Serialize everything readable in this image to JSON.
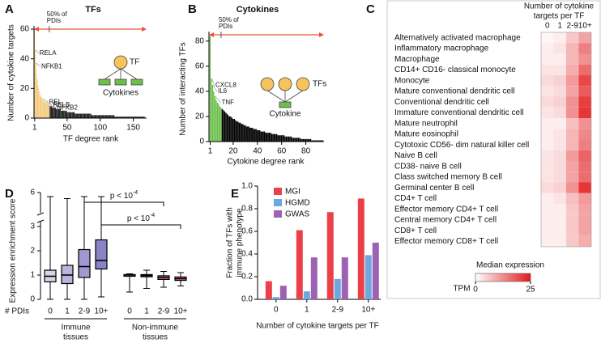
{
  "chart_data": [
    {
      "type": "rank_bar",
      "panel_label": "A",
      "title": "TFs",
      "xlabel": "TF degree rank",
      "ylabel": "Number of cytokine targets",
      "xlim": [
        0,
        170
      ],
      "xticks": [
        1,
        50,
        100,
        150
      ],
      "ylim": [
        0,
        60
      ],
      "yticks": [
        0,
        20,
        40,
        60
      ],
      "color": "#000000",
      "highlight_color": "#f2c46d",
      "arrow_color": "#e8533a",
      "annotation": {
        "lines": [
          "50% of",
          "PDIs"
        ],
        "x": 23
      },
      "point_labels": [
        {
          "text": "RELA",
          "rank": 2
        },
        {
          "text": "NFKB1",
          "rank": 3
        },
        {
          "text": "REL",
          "rank": 13
        },
        {
          "text": "RELB",
          "rank": 17
        },
        {
          "text": "NFKB2",
          "rank": 21
        }
      ],
      "inset_labels": [
        "TF",
        "Cytokines"
      ],
      "values": [
        60,
        46,
        37,
        30,
        26,
        22,
        20,
        18,
        16,
        15,
        14,
        14,
        13,
        12,
        12,
        11,
        11,
        10,
        10,
        10,
        9,
        9,
        9,
        8,
        8,
        8,
        8,
        7,
        7,
        7,
        7,
        7,
        7,
        6,
        6,
        6,
        6,
        6,
        6,
        6,
        5,
        5,
        5,
        5,
        5,
        5,
        5,
        5,
        5,
        4,
        4,
        4,
        4,
        4,
        4,
        4,
        4,
        4,
        4,
        4,
        4,
        3,
        3,
        3,
        3,
        3,
        3,
        3,
        3,
        3,
        3,
        3,
        3,
        3,
        3,
        3,
        3,
        3,
        3,
        3,
        3,
        3,
        3,
        3,
        3,
        3,
        2,
        2,
        2,
        2,
        2,
        2,
        2,
        2,
        2,
        2,
        2,
        2,
        2,
        2,
        2,
        2,
        2,
        2,
        2,
        2,
        2,
        2,
        2,
        2,
        2,
        2,
        2,
        2,
        2,
        2,
        2,
        2,
        2,
        2,
        2,
        1,
        1,
        1,
        1,
        1,
        1,
        1,
        1,
        1,
        1,
        1,
        1,
        1,
        1,
        1,
        1,
        1,
        1,
        1,
        1,
        1,
        1,
        1,
        1,
        1,
        1,
        1,
        1,
        1,
        1,
        1,
        1,
        1,
        1,
        1,
        1,
        1,
        1,
        1,
        1,
        1,
        1,
        1,
        1,
        1,
        1
      ]
    },
    {
      "type": "rank_bar",
      "panel_label": "B",
      "title": "Cytokines",
      "xlabel": "Cytokine degree rank",
      "ylabel": "Number of interacting TFs",
      "xlim": [
        0,
        95
      ],
      "xticks": [
        1,
        20,
        40,
        60,
        80
      ],
      "ylim": [
        0,
        85
      ],
      "yticks": [
        0,
        20,
        40,
        60,
        80
      ],
      "color": "#000000",
      "highlight_color": "#6cbf4a",
      "arrow_color": "#e8533a",
      "annotation": {
        "lines": [
          "50% of",
          "PDIs"
        ],
        "x": 10
      },
      "point_labels": [
        {
          "text": "CXCL8",
          "rank": 2
        },
        {
          "text": "IL6",
          "rank": 3
        },
        {
          "text": "TNF",
          "rank": 5
        }
      ],
      "inset_labels": [
        "TFs",
        "Cytokine"
      ],
      "values": [
        84,
        50,
        45,
        40,
        36,
        33,
        31,
        30,
        28,
        27,
        26,
        25,
        24,
        23,
        22,
        21,
        20,
        20,
        19,
        18,
        18,
        17,
        16,
        16,
        15,
        15,
        14,
        14,
        13,
        13,
        12,
        12,
        12,
        11,
        11,
        11,
        10,
        10,
        10,
        9,
        9,
        9,
        8,
        8,
        8,
        8,
        7,
        7,
        7,
        7,
        7,
        6,
        6,
        6,
        6,
        6,
        5,
        5,
        5,
        5,
        5,
        5,
        4,
        4,
        4,
        4,
        4,
        4,
        3,
        3,
        3,
        3,
        3,
        3,
        3,
        2,
        2,
        2,
        2,
        2,
        2,
        2,
        2,
        2,
        1,
        1,
        1,
        1,
        1,
        1,
        1,
        1,
        1,
        1
      ]
    },
    {
      "type": "heatmap",
      "panel_label": "C",
      "title_lines": [
        "Number of cytokine",
        "targets per TF"
      ],
      "columns": [
        "0",
        "1",
        "2-9",
        "10+"
      ],
      "rows": [
        "Alternatively activated macrophage",
        "Inflammatory macrophage",
        "Macrophage",
        "CD14+ CD16- classical monocyte",
        "Monocyte",
        "Mature conventional dendritic cell",
        "Conventional dendritic cell",
        "Immature conventional dendritic cell",
        "Mature neutrophil",
        "Mature eosinophil",
        "Cytotoxic CD56- dim natural killer cell",
        "Naive B cell",
        "CD38- naive B cell",
        "Class switched memory B cell",
        "Germinal center B cell",
        "CD4+ T cell",
        "Effector memory CD4+ T cell",
        "Central memory CD4+ T cell",
        "CD8+ T cell",
        "Effector memory CD8+ T cell"
      ],
      "values": [
        [
          1,
          2,
          6,
          10
        ],
        [
          2,
          3,
          8,
          14
        ],
        [
          2,
          2,
          8,
          12
        ],
        [
          3,
          3,
          9,
          16
        ],
        [
          4,
          5,
          11,
          20
        ],
        [
          3,
          4,
          10,
          18
        ],
        [
          4,
          5,
          12,
          21
        ],
        [
          3,
          4,
          12,
          22
        ],
        [
          2,
          2,
          7,
          12
        ],
        [
          2,
          3,
          8,
          13
        ],
        [
          2,
          3,
          8,
          14
        ],
        [
          3,
          4,
          11,
          17
        ],
        [
          3,
          4,
          10,
          16
        ],
        [
          3,
          4,
          10,
          16
        ],
        [
          4,
          5,
          12,
          22
        ],
        [
          2,
          3,
          7,
          11
        ],
        [
          2,
          2,
          6,
          10
        ],
        [
          2,
          2,
          6,
          10
        ],
        [
          2,
          2,
          6,
          10
        ],
        [
          2,
          2,
          6,
          9
        ]
      ],
      "color": "#e31a1c",
      "clim": [
        0,
        25
      ],
      "colorbar_ticks": [
        0,
        25
      ],
      "colorbar_label": "Median expression",
      "colorbar_unit": "TPM"
    },
    {
      "type": "box",
      "panel_label": "D",
      "ylabel": "Expression enrichment score",
      "xlabel": "# PDIs",
      "ylim": [
        0,
        6
      ],
      "yticks": [
        0,
        1,
        2,
        3,
        6
      ],
      "ybreak": [
        3.2,
        5
      ],
      "categories": [
        "0",
        "1",
        "2-9",
        "10+",
        "0",
        "1",
        "2-9",
        "10+"
      ],
      "groups": [
        {
          "lines": [
            "Immune",
            "tissues"
          ]
        },
        {
          "lines": [
            "Non-immune",
            "tissues"
          ]
        }
      ],
      "boxes": [
        {
          "min": 0,
          "q1": 0.72,
          "median": 0.95,
          "q3": 1.2,
          "max": 5.8
        },
        {
          "min": 0,
          "q1": 0.65,
          "median": 1.0,
          "q3": 1.4,
          "max": 5.7
        },
        {
          "min": 0,
          "q1": 0.9,
          "median": 1.35,
          "q3": 2.05,
          "max": 5.8
        },
        {
          "min": 0.1,
          "q1": 1.25,
          "median": 1.6,
          "q3": 2.45,
          "max": 5.8
        },
        {
          "min": 0.3,
          "q1": 0.95,
          "median": 1.0,
          "q3": 1.02,
          "max": 1.05
        },
        {
          "min": 0.45,
          "q1": 0.93,
          "median": 0.98,
          "q3": 1.02,
          "max": 1.2
        },
        {
          "min": 0.5,
          "q1": 0.82,
          "median": 0.9,
          "q3": 0.97,
          "max": 1.15
        },
        {
          "min": 0.55,
          "q1": 0.78,
          "median": 0.85,
          "q3": 0.92,
          "max": 1.1
        }
      ],
      "box_colors": [
        "#d6d3ea",
        "#b9b4dc",
        "#9f99cf",
        "#8a83c4",
        "#f3b6bd",
        "#ee9aa4",
        "#e8808c",
        "#e36674"
      ],
      "comparisons": [
        {
          "text": "p < 10",
          "sup": "-4",
          "from": 2,
          "to": 6
        },
        {
          "text": "p < 10",
          "sup": "-4",
          "from": 3,
          "to": 7
        }
      ]
    },
    {
      "type": "bar",
      "panel_label": "E",
      "ylabel_lines": [
        "Fraction of TFs with",
        "immune phenotype"
      ],
      "xlabel": "Number of cytokine targets per TF",
      "categories": [
        "0",
        "1",
        "2-9",
        "10+"
      ],
      "ylim": [
        0,
        1
      ],
      "yticks": [
        {
          "value": 0,
          "label": "0.0"
        },
        0.2,
        0.4,
        0.6,
        0.8,
        {
          "value": 1,
          "label": "1.0"
        }
      ],
      "legend": "top-left",
      "series": [
        {
          "name": "MGI",
          "color": "#ec4049",
          "values": [
            0.16,
            0.61,
            0.77,
            0.89
          ]
        },
        {
          "name": "HGMD",
          "color": "#6fa8dc",
          "values": [
            0.02,
            0.07,
            0.18,
            0.39
          ]
        },
        {
          "name": "GWAS",
          "color": "#9e62b4",
          "values": [
            0.12,
            0.37,
            0.37,
            0.5
          ]
        }
      ]
    }
  ]
}
